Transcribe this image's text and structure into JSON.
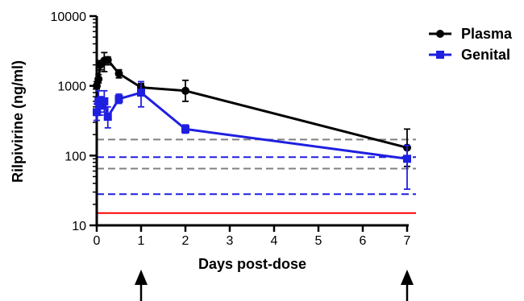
{
  "chart_data": {
    "type": "line",
    "title": "",
    "xlabel": "Days post-dose",
    "ylabel": "Rilpivirine (ng/ml)",
    "xlim": [
      0,
      7
    ],
    "ylim": [
      10,
      10000
    ],
    "yscale": "log",
    "x_ticks": [
      "0",
      "1",
      "2",
      "3",
      "4",
      "5",
      "6",
      "7"
    ],
    "y_ticks": [
      "10",
      "100",
      "1000",
      "10000"
    ],
    "grid": false,
    "legend_position": "top-right",
    "series": [
      {
        "name": "Plasma",
        "color": "#000000",
        "marker": "circle",
        "points": [
          {
            "x": 0.0,
            "y": 1000,
            "err_low": 900,
            "err_high": 1150
          },
          {
            "x": 0.04,
            "y": 1250,
            "err_low": 1100,
            "err_high": 1450
          },
          {
            "x": 0.08,
            "y": 2000,
            "err_low": 1700,
            "err_high": 2300
          },
          {
            "x": 0.17,
            "y": 2300,
            "err_low": 1600,
            "err_high": 3000
          },
          {
            "x": 0.25,
            "y": 2350,
            "err_low": 2000,
            "err_high": 2600
          },
          {
            "x": 0.5,
            "y": 1500,
            "err_low": 1300,
            "err_high": 1700
          },
          {
            "x": 1.0,
            "y": 950,
            "err_low": 820,
            "err_high": 1080
          },
          {
            "x": 2.0,
            "y": 850,
            "err_low": 600,
            "err_high": 1200
          },
          {
            "x": 7.0,
            "y": 130,
            "err_low": 70,
            "err_high": 240
          }
        ]
      },
      {
        "name": "Genital",
        "color": "#1f1fe0",
        "marker": "square",
        "points": [
          {
            "x": 0.0,
            "y": 420,
            "err_low": 320,
            "err_high": 550
          },
          {
            "x": 0.04,
            "y": 600,
            "err_low": 420,
            "err_high": 850
          },
          {
            "x": 0.08,
            "y": 520,
            "err_low": 380,
            "err_high": 700
          },
          {
            "x": 0.17,
            "y": 600,
            "err_low": 420,
            "err_high": 850
          },
          {
            "x": 0.25,
            "y": 360,
            "err_low": 250,
            "err_high": 500
          },
          {
            "x": 0.5,
            "y": 650,
            "err_low": 560,
            "err_high": 760
          },
          {
            "x": 1.0,
            "y": 800,
            "err_low": 500,
            "err_high": 1150
          },
          {
            "x": 2.0,
            "y": 240,
            "err_low": 210,
            "err_high": 275
          },
          {
            "x": 7.0,
            "y": 90,
            "err_low": 33,
            "err_high": 140
          }
        ]
      }
    ],
    "reference_lines": [
      {
        "y": 170,
        "color": "#808080",
        "style": "dashed"
      },
      {
        "y": 65,
        "color": "#808080",
        "style": "dashed"
      },
      {
        "y": 95,
        "color": "#1f1fe0",
        "style": "dashed"
      },
      {
        "y": 28,
        "color": "#1f1fe0",
        "style": "dashed"
      },
      {
        "y": 15,
        "color": "#ff0000",
        "style": "solid"
      }
    ],
    "annotations": [
      {
        "type": "arrow",
        "x": 1,
        "direction": "up"
      },
      {
        "type": "arrow",
        "x": 7,
        "direction": "up"
      }
    ]
  }
}
